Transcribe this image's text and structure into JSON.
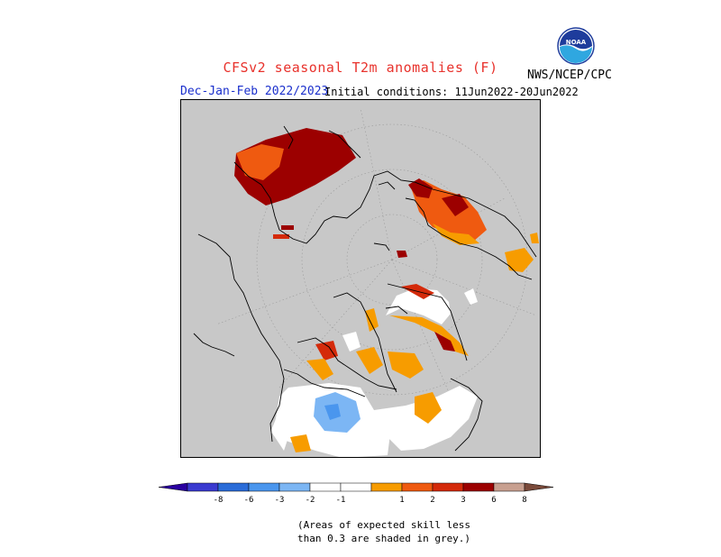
{
  "title": "CFSv2 seasonal T2m anomalies (F)",
  "period": "Dec-Jan-Feb 2022/2023",
  "init": "Initial conditions: 11Jun2022-20Jun2022",
  "agency": "NWS/NCEP/CPC",
  "logo_text": "NOAA",
  "note_line1": "(Areas of expected skill less",
  "note_line2": "than 0.3 are shaded in grey.)",
  "colors": {
    "title": "#e8322c",
    "period": "#1a2fcc",
    "no_skill_grey": "#c8c8c8"
  },
  "legend": {
    "bins": [
      {
        "color": "#2a00a0"
      },
      {
        "color": "#3a3ad0"
      },
      {
        "color": "#2a6cd8"
      },
      {
        "color": "#4a96ee"
      },
      {
        "color": "#7cb6f4"
      },
      {
        "color": "#ffffff"
      },
      {
        "color": "#ffffff"
      },
      {
        "color": "#f79c00"
      },
      {
        "color": "#ef5a10"
      },
      {
        "color": "#d42a0a"
      },
      {
        "color": "#9c0000"
      },
      {
        "color": "#c8a090"
      },
      {
        "color": "#7a4a3a"
      }
    ],
    "labels": [
      "-8",
      "-6",
      "-3",
      "-2",
      "-1",
      "1",
      "2",
      "3",
      "6",
      "8"
    ]
  }
}
